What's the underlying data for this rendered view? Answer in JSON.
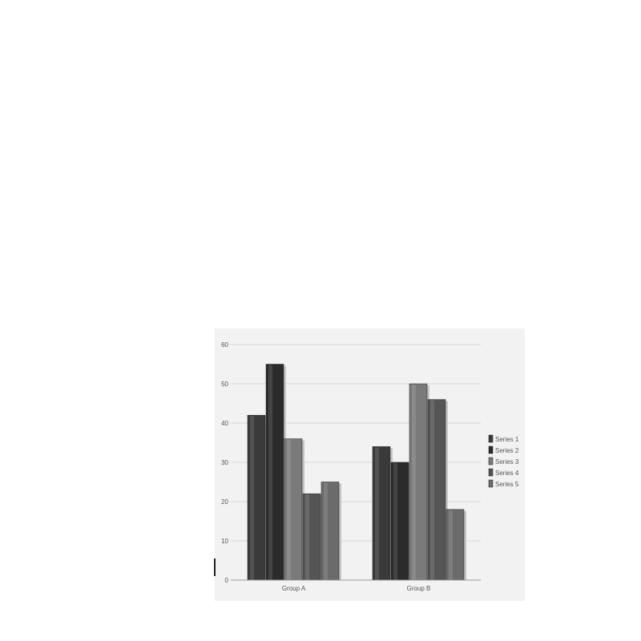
{
  "chart_data": {
    "type": "bar",
    "categories": [
      "Group A",
      "Group B"
    ],
    "series": [
      {
        "name": "Series 1",
        "values": [
          42,
          34
        ],
        "color": "#3a3a3a"
      },
      {
        "name": "Series 2",
        "values": [
          55,
          30
        ],
        "color": "#2b2b2b"
      },
      {
        "name": "Series 3",
        "values": [
          36,
          50
        ],
        "color": "#7a7a7a"
      },
      {
        "name": "Series 4",
        "values": [
          22,
          46
        ],
        "color": "#555555"
      },
      {
        "name": "Series 5",
        "values": [
          25,
          18
        ],
        "color": "#6b6b6b"
      }
    ],
    "yticks": [
      "0",
      "10",
      "20",
      "30",
      "40",
      "50",
      "60"
    ],
    "ylim": [
      0,
      60
    ],
    "grid": true,
    "legend_position": "right"
  }
}
